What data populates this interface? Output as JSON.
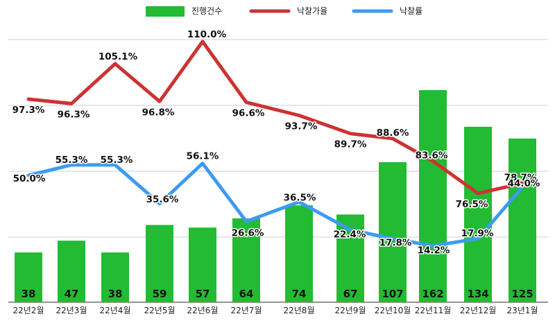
{
  "chart_data": {
    "type": "bar",
    "categories": [
      "22년2월",
      "22년3월",
      "22년4월",
      "22년5월",
      "22년6월",
      "22년7월",
      "22년8월",
      "22년9월",
      "22년10월",
      "22년11월",
      "22년12월",
      "23년1월"
    ],
    "series": [
      {
        "name": "진행건수",
        "type": "bar",
        "color": "#22bb33",
        "values": [
          38,
          47,
          38,
          59,
          57,
          64,
          74,
          67,
          107,
          162,
          134,
          125
        ],
        "labels": [
          "38",
          "47",
          "38",
          "59",
          "57",
          "64",
          "74",
          "67",
          "107",
          "162",
          "134",
          "125"
        ]
      },
      {
        "name": "낙찰가율",
        "type": "line",
        "color": "#cc3333",
        "values": [
          97.3,
          96.3,
          105.1,
          96.8,
          110.0,
          96.6,
          93.7,
          89.7,
          88.6,
          83.6,
          76.5,
          78.7
        ],
        "labels": [
          "97.3%",
          "96.3%",
          "105.1%",
          "96.8%",
          "110.0%",
          "96.6%",
          "93.7%",
          "89.7%",
          "88.6%",
          "83.6%",
          "76.5%",
          "78.7%"
        ]
      },
      {
        "name": "낙찰률",
        "type": "line",
        "color": "#3d9bf0",
        "values": [
          50.0,
          55.3,
          55.3,
          35.6,
          56.1,
          26.6,
          36.5,
          22.4,
          17.8,
          14.2,
          17.9,
          44.0
        ],
        "labels": [
          "50.0%",
          "55.3%",
          "55.3%",
          "35.6%",
          "56.1%",
          "26.6%",
          "36.5%",
          "22.4%",
          "17.8%",
          "14.2%",
          "17.9%",
          "44.0%"
        ]
      }
    ],
    "legend_position": "top-center",
    "grid": true
  }
}
